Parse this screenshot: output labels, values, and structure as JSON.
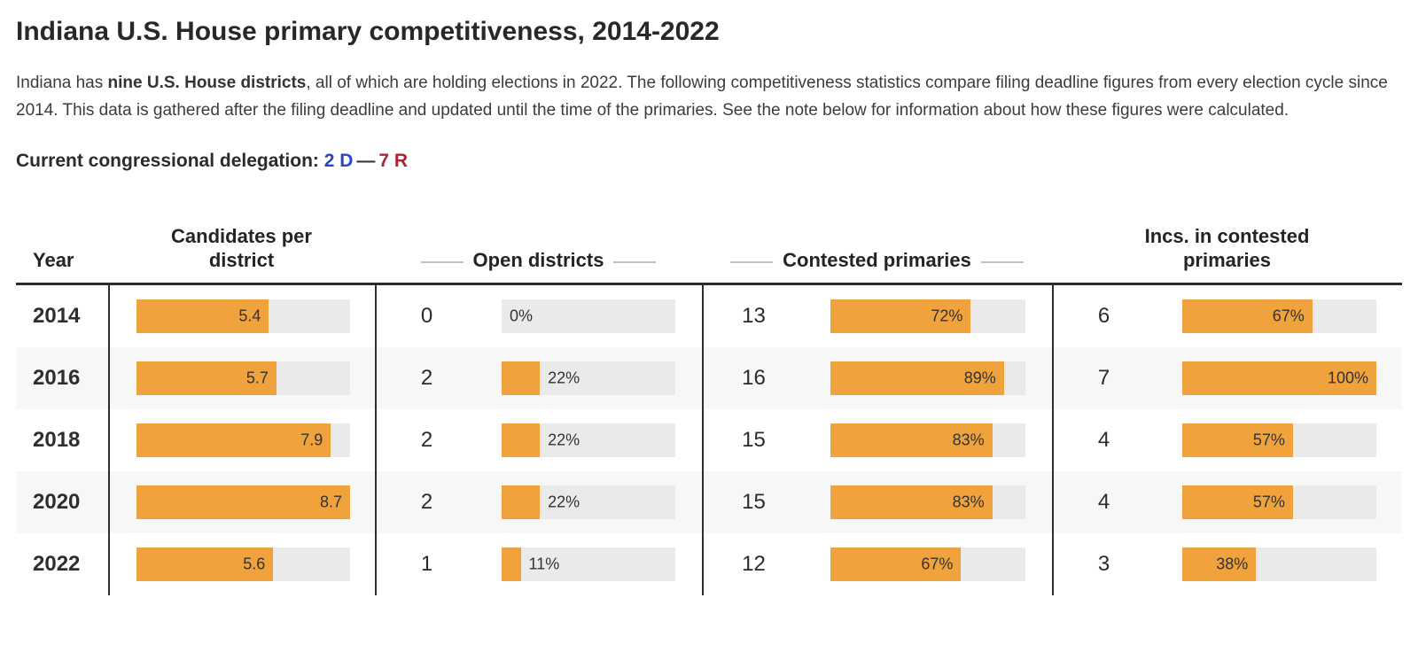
{
  "page": {
    "title": "Indiana U.S. House primary competitiveness, 2014-2022",
    "intro": {
      "prefix": "Indiana has ",
      "bold": "nine U.S. House districts",
      "rest": ", all of which are holding elections in 2022. The following competitiveness statistics compare filing deadline figures from every election cycle since 2014. This data is gathered after the filing deadline and updated until the time of the primaries. See the note below for information about how these figures were calculated."
    },
    "delegation": {
      "label": "Current congressional delegation:",
      "dem": "2 D",
      "separator": "—",
      "rep": "7 R"
    }
  },
  "colors": {
    "bar_orange": "#f0a23c",
    "bar_track_gray": "#eaeaea",
    "row_stripe_gray": "#f7f7f7",
    "dem_blue": "#2c45c8",
    "rep_red": "#ad2431",
    "table_rule_dark": "#2b2b2b",
    "header_dash_gray": "#c2c2c2"
  },
  "table": {
    "headers": {
      "year": "Year",
      "candidates": "Candidates per district",
      "open": "Open districts",
      "contested": "Contested primaries",
      "incs": "Incs. in contested primaries"
    },
    "rows": [
      {
        "year": "2014",
        "cand": {
          "value": 5.4,
          "label": "5.4",
          "frac": 0.62
        },
        "open": {
          "count": "0",
          "pct": 0,
          "label": "0%",
          "frac": 0
        },
        "cont": {
          "count": "13",
          "pct": 72,
          "label": "72%",
          "frac": 0.72
        },
        "incs": {
          "count": "6",
          "pct": 67,
          "label": "67%",
          "frac": 0.67
        }
      },
      {
        "year": "2016",
        "cand": {
          "value": 5.7,
          "label": "5.7",
          "frac": 0.655
        },
        "open": {
          "count": "2",
          "pct": 22,
          "label": "22%",
          "frac": 0.22
        },
        "cont": {
          "count": "16",
          "pct": 89,
          "label": "89%",
          "frac": 0.89
        },
        "incs": {
          "count": "7",
          "pct": 100,
          "label": "100%",
          "frac": 1
        }
      },
      {
        "year": "2018",
        "cand": {
          "value": 7.9,
          "label": "7.9",
          "frac": 0.91
        },
        "open": {
          "count": "2",
          "pct": 22,
          "label": "22%",
          "frac": 0.22
        },
        "cont": {
          "count": "15",
          "pct": 83,
          "label": "83%",
          "frac": 0.83
        },
        "incs": {
          "count": "4",
          "pct": 57,
          "label": "57%",
          "frac": 0.57
        }
      },
      {
        "year": "2020",
        "cand": {
          "value": 8.7,
          "label": "8.7",
          "frac": 1
        },
        "open": {
          "count": "2",
          "pct": 22,
          "label": "22%",
          "frac": 0.22
        },
        "cont": {
          "count": "15",
          "pct": 83,
          "label": "83%",
          "frac": 0.83
        },
        "incs": {
          "count": "4",
          "pct": 57,
          "label": "57%",
          "frac": 0.57
        }
      },
      {
        "year": "2022",
        "cand": {
          "value": 5.6,
          "label": "5.6",
          "frac": 0.64
        },
        "open": {
          "count": "1",
          "pct": 11,
          "label": "11%",
          "frac": 0.11
        },
        "cont": {
          "count": "12",
          "pct": 67,
          "label": "67%",
          "frac": 0.67
        },
        "incs": {
          "count": "3",
          "pct": 38,
          "label": "38%",
          "frac": 0.38
        }
      }
    ]
  },
  "chart_data": {
    "type": "table",
    "title": "Indiana U.S. House primary competitiveness, 2014-2022",
    "categories": [
      "2014",
      "2016",
      "2018",
      "2020",
      "2022"
    ],
    "columns": [
      "Year",
      "Candidates per district",
      "Open districts",
      "Contested primaries",
      "Incs. in contested primaries"
    ],
    "series": [
      {
        "name": "Candidates per district",
        "values": [
          5.4,
          5.7,
          7.9,
          8.7,
          5.6
        ]
      },
      {
        "name": "Open districts (count)",
        "values": [
          0,
          2,
          2,
          2,
          1
        ]
      },
      {
        "name": "Open districts (%)",
        "values": [
          0,
          22,
          22,
          22,
          11
        ]
      },
      {
        "name": "Contested primaries (count)",
        "values": [
          13,
          16,
          15,
          15,
          12
        ]
      },
      {
        "name": "Contested primaries (%)",
        "values": [
          72,
          89,
          83,
          83,
          67
        ]
      },
      {
        "name": "Incumbents in contested primaries (count)",
        "values": [
          6,
          7,
          4,
          4,
          3
        ]
      },
      {
        "name": "Incumbents in contested primaries (%)",
        "values": [
          67,
          100,
          57,
          57,
          38
        ]
      }
    ],
    "bar_scale_note": "candidate bars scaled to max value 8.7; percent bars scaled 0-100%",
    "legend_position": "none",
    "grid": false
  }
}
